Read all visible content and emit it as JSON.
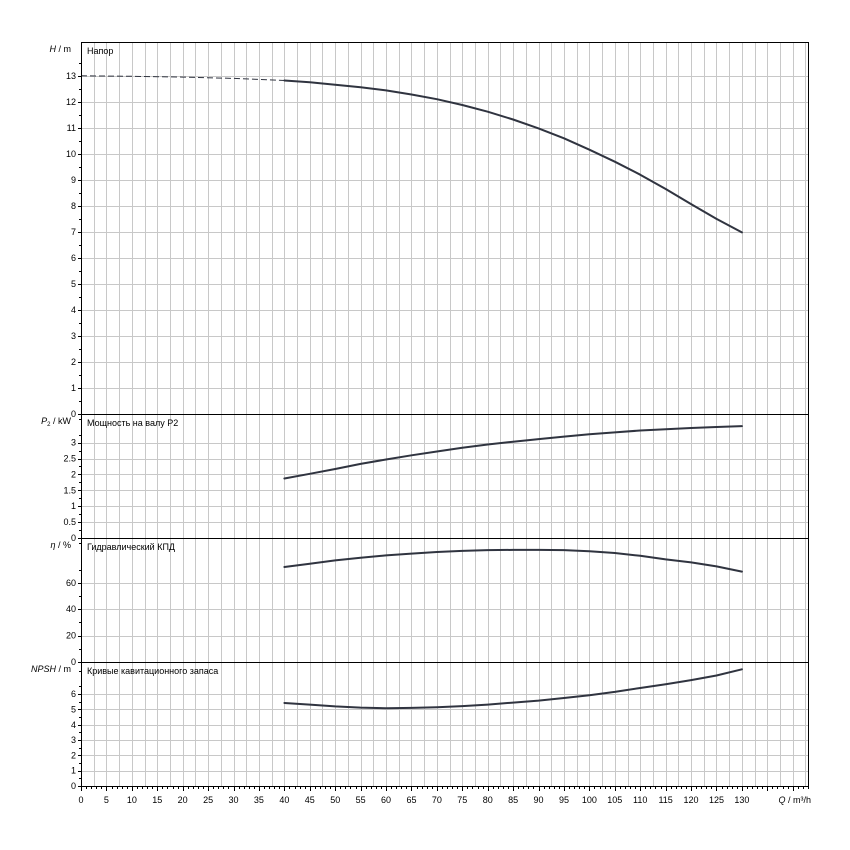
{
  "chart_data": [
    {
      "type": "line",
      "title": "Напор",
      "ylabel": "H / m",
      "y_label_italic": "H",
      "y_label_unit": "m",
      "xlim": [
        0,
        143
      ],
      "ylim": [
        0,
        14.3
      ],
      "yticks": [
        0,
        1,
        2,
        3,
        4,
        5,
        6,
        7,
        8,
        9,
        10,
        11,
        12,
        13
      ],
      "series": [
        {
          "dashed_segment": {
            "x": [
              0,
              10,
              20,
              30,
              40
            ],
            "y": [
              13.0,
              12.98,
              12.95,
              12.9,
              12.82
            ]
          },
          "x": [
            40,
            45,
            50,
            55,
            60,
            65,
            70,
            75,
            80,
            85,
            90,
            95,
            100,
            105,
            110,
            115,
            120,
            125,
            130
          ],
          "y": [
            12.82,
            12.75,
            12.66,
            12.56,
            12.44,
            12.28,
            12.1,
            11.88,
            11.62,
            11.32,
            10.98,
            10.6,
            10.16,
            9.7,
            9.2,
            8.65,
            8.07,
            7.5,
            6.98
          ]
        }
      ],
      "color": "#303440"
    },
    {
      "type": "line",
      "title": "Мощность на валу P2",
      "ylabel": "P₂ / kW",
      "y_label_italic": "P",
      "y_label_sub": "2",
      "y_label_unit": "kW",
      "xlim": [
        0,
        143
      ],
      "ylim": [
        0,
        3.9
      ],
      "yticks": [
        0,
        0.5,
        1,
        1.5,
        2,
        2.5,
        3
      ],
      "ytick_labels": [
        "0",
        "0.5",
        "1",
        "1.5",
        "2",
        "2.5",
        "3"
      ],
      "series": [
        {
          "x": [
            40,
            45,
            50,
            55,
            60,
            65,
            70,
            75,
            80,
            85,
            90,
            95,
            100,
            105,
            110,
            115,
            120,
            125,
            130
          ],
          "y": [
            1.87,
            2.02,
            2.17,
            2.33,
            2.47,
            2.6,
            2.72,
            2.84,
            2.94,
            3.03,
            3.11,
            3.19,
            3.26,
            3.32,
            3.38,
            3.42,
            3.46,
            3.49,
            3.52
          ]
        }
      ],
      "color": "#303440"
    },
    {
      "type": "line",
      "title": "Гидравлический КПД",
      "ylabel": "η / %",
      "y_label_italic": "η",
      "y_label_unit": "%",
      "xlim": [
        0,
        143
      ],
      "ylim": [
        0,
        94
      ],
      "yticks": [
        0,
        20,
        40,
        60
      ],
      "series": [
        {
          "x": [
            40,
            45,
            50,
            55,
            60,
            65,
            70,
            75,
            80,
            85,
            90,
            95,
            100,
            105,
            110,
            115,
            120,
            125,
            130
          ],
          "y": [
            72,
            74.5,
            77,
            79,
            80.8,
            82.2,
            83.4,
            84.2,
            84.8,
            85,
            85,
            84.8,
            84,
            82.6,
            80.5,
            77.8,
            75.5,
            72.5,
            68.5
          ]
        }
      ],
      "color": "#303440"
    },
    {
      "type": "line",
      "title": "Кривые кавитационного запаса",
      "ylabel": "NPSH / m",
      "y_label_italic": "NPSH",
      "y_label_unit": "m",
      "xlim": [
        0,
        143
      ],
      "ylim": [
        0,
        8.1
      ],
      "yticks": [
        0,
        1,
        2,
        3,
        4,
        5,
        6
      ],
      "xlabel": "Q / m³/h",
      "x_label_italic": "Q",
      "x_label_unit": "m³/h",
      "xticks": [
        0,
        5,
        10,
        15,
        20,
        25,
        30,
        35,
        40,
        45,
        50,
        55,
        60,
        65,
        70,
        75,
        80,
        85,
        90,
        95,
        100,
        105,
        110,
        115,
        120,
        125,
        130
      ],
      "series": [
        {
          "x": [
            40,
            45,
            50,
            55,
            60,
            65,
            70,
            75,
            80,
            85,
            90,
            95,
            100,
            105,
            110,
            115,
            120,
            125,
            130
          ],
          "y": [
            5.42,
            5.32,
            5.2,
            5.12,
            5.08,
            5.1,
            5.15,
            5.22,
            5.32,
            5.45,
            5.58,
            5.75,
            5.93,
            6.15,
            6.4,
            6.65,
            6.92,
            7.22,
            7.62
          ]
        }
      ],
      "color": "#303440"
    }
  ],
  "grid": true
}
